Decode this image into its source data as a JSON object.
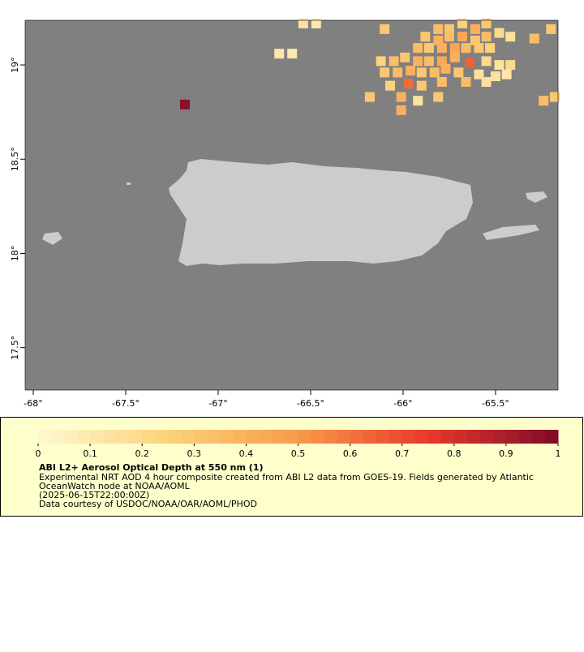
{
  "chart_data": {
    "type": "map",
    "xlim": [
      -68.044,
      -65.162
    ],
    "ylim": [
      17.275,
      19.237
    ],
    "xticks": [
      {
        "value": -68,
        "label": "-68°"
      },
      {
        "value": -67.5,
        "label": "-67.5°"
      },
      {
        "value": -67,
        "label": "-67°"
      },
      {
        "value": -66.5,
        "label": "-66.5°"
      },
      {
        "value": -66,
        "label": "-66°"
      },
      {
        "value": -65.5,
        "label": "-65.5°"
      }
    ],
    "yticks": [
      {
        "value": 17.5,
        "label": "17.5°"
      },
      {
        "value": 18,
        "label": "18°"
      },
      {
        "value": 18.5,
        "label": "18.5°"
      },
      {
        "value": 19,
        "label": "19°"
      }
    ],
    "background_color": "#808080",
    "land_color": "#cccccc",
    "colormap": [
      "#fff8d2",
      "#fcd27a",
      "#f99b4a",
      "#e83a2a",
      "#7f0a2a"
    ],
    "colorbar_lim": [
      0,
      1
    ],
    "colorbar_ticks": [
      0,
      0.1,
      0.2,
      0.3,
      0.4,
      0.5,
      0.6,
      0.7,
      0.8,
      0.9,
      1
    ],
    "cells": [
      {
        "lon": -67.18,
        "lat": 18.79,
        "aod": 0.97
      },
      {
        "lon": -65.64,
        "lat": 19.01,
        "aod": 0.65
      },
      {
        "lon": -65.97,
        "lat": 18.9,
        "aod": 0.62
      },
      {
        "lon": -66.54,
        "lat": 19.22,
        "aod": 0.15
      },
      {
        "lon": -66.47,
        "lat": 19.22,
        "aod": 0.12
      },
      {
        "lon": -66.1,
        "lat": 19.19,
        "aod": 0.3
      },
      {
        "lon": -66.67,
        "lat": 19.06,
        "aod": 0.12
      },
      {
        "lon": -66.6,
        "lat": 19.06,
        "aod": 0.1
      },
      {
        "lon": -65.81,
        "lat": 19.19,
        "aod": 0.35
      },
      {
        "lon": -65.75,
        "lat": 19.19,
        "aod": 0.3
      },
      {
        "lon": -65.68,
        "lat": 19.22,
        "aod": 0.25
      },
      {
        "lon": -65.61,
        "lat": 19.19,
        "aod": 0.4
      },
      {
        "lon": -65.55,
        "lat": 19.22,
        "aod": 0.3
      },
      {
        "lon": -65.48,
        "lat": 19.17,
        "aod": 0.2
      },
      {
        "lon": -65.42,
        "lat": 19.15,
        "aod": 0.15
      },
      {
        "lon": -65.29,
        "lat": 19.14,
        "aod": 0.35
      },
      {
        "lon": -65.2,
        "lat": 19.19,
        "aod": 0.3
      },
      {
        "lon": -65.88,
        "lat": 19.15,
        "aod": 0.3
      },
      {
        "lon": -65.81,
        "lat": 19.13,
        "aod": 0.4
      },
      {
        "lon": -65.75,
        "lat": 19.15,
        "aod": 0.35
      },
      {
        "lon": -65.68,
        "lat": 19.15,
        "aod": 0.45
      },
      {
        "lon": -65.61,
        "lat": 19.13,
        "aod": 0.3
      },
      {
        "lon": -65.55,
        "lat": 19.15,
        "aod": 0.35
      },
      {
        "lon": -65.92,
        "lat": 19.09,
        "aod": 0.35
      },
      {
        "lon": -65.86,
        "lat": 19.09,
        "aod": 0.3
      },
      {
        "lon": -65.79,
        "lat": 19.09,
        "aod": 0.4
      },
      {
        "lon": -65.72,
        "lat": 19.09,
        "aod": 0.45
      },
      {
        "lon": -65.66,
        "lat": 19.09,
        "aod": 0.35
      },
      {
        "lon": -65.59,
        "lat": 19.09,
        "aod": 0.3
      },
      {
        "lon": -65.53,
        "lat": 19.09,
        "aod": 0.25
      },
      {
        "lon": -65.99,
        "lat": 19.04,
        "aod": 0.3
      },
      {
        "lon": -66.05,
        "lat": 19.02,
        "aod": 0.35
      },
      {
        "lon": -66.12,
        "lat": 19.02,
        "aod": 0.25
      },
      {
        "lon": -65.92,
        "lat": 19.02,
        "aod": 0.4
      },
      {
        "lon": -65.86,
        "lat": 19.02,
        "aod": 0.35
      },
      {
        "lon": -65.79,
        "lat": 19.02,
        "aod": 0.45
      },
      {
        "lon": -65.72,
        "lat": 19.04,
        "aod": 0.4
      },
      {
        "lon": -65.55,
        "lat": 19.02,
        "aod": 0.2
      },
      {
        "lon": -65.48,
        "lat": 19.0,
        "aod": 0.15
      },
      {
        "lon": -65.42,
        "lat": 19.0,
        "aod": 0.2
      },
      {
        "lon": -66.1,
        "lat": 18.96,
        "aod": 0.3
      },
      {
        "lon": -66.03,
        "lat": 18.96,
        "aod": 0.35
      },
      {
        "lon": -65.96,
        "lat": 18.97,
        "aod": 0.4
      },
      {
        "lon": -65.9,
        "lat": 18.96,
        "aod": 0.3
      },
      {
        "lon": -65.83,
        "lat": 18.96,
        "aod": 0.35
      },
      {
        "lon": -65.77,
        "lat": 18.98,
        "aod": 0.4
      },
      {
        "lon": -65.7,
        "lat": 18.96,
        "aod": 0.3
      },
      {
        "lon": -65.59,
        "lat": 18.95,
        "aod": 0.15
      },
      {
        "lon": -65.5,
        "lat": 18.94,
        "aod": 0.15
      },
      {
        "lon": -65.44,
        "lat": 18.95,
        "aod": 0.12
      },
      {
        "lon": -66.07,
        "lat": 18.89,
        "aod": 0.25
      },
      {
        "lon": -65.9,
        "lat": 18.89,
        "aod": 0.3
      },
      {
        "lon": -65.79,
        "lat": 18.91,
        "aod": 0.35
      },
      {
        "lon": -65.66,
        "lat": 18.91,
        "aod": 0.35
      },
      {
        "lon": -65.55,
        "lat": 18.91,
        "aod": 0.15
      },
      {
        "lon": -66.01,
        "lat": 18.83,
        "aod": 0.4
      },
      {
        "lon": -65.92,
        "lat": 18.81,
        "aod": 0.15
      },
      {
        "lon": -65.81,
        "lat": 18.83,
        "aod": 0.3
      },
      {
        "lon": -66.18,
        "lat": 18.83,
        "aod": 0.3
      },
      {
        "lon": -66.01,
        "lat": 18.76,
        "aod": 0.4
      },
      {
        "lon": -65.24,
        "lat": 18.81,
        "aod": 0.35
      },
      {
        "lon": -65.18,
        "lat": 18.83,
        "aod": 0.3
      }
    ],
    "legend": {
      "title": "ABI L2+ Aerosol Optical Depth at 550 nm (1)",
      "lines": [
        "Experimental NRT AOD 4 hour composite created from ABI L2 data from GOES-19. Fields generated by Atlantic",
        "OceanWatch node at NOAA/AOML",
        "(2025-06-15T22:00:00Z)",
        "Data courtesy of USDOC/NOAA/OAR/AOML/PHOD"
      ]
    }
  }
}
